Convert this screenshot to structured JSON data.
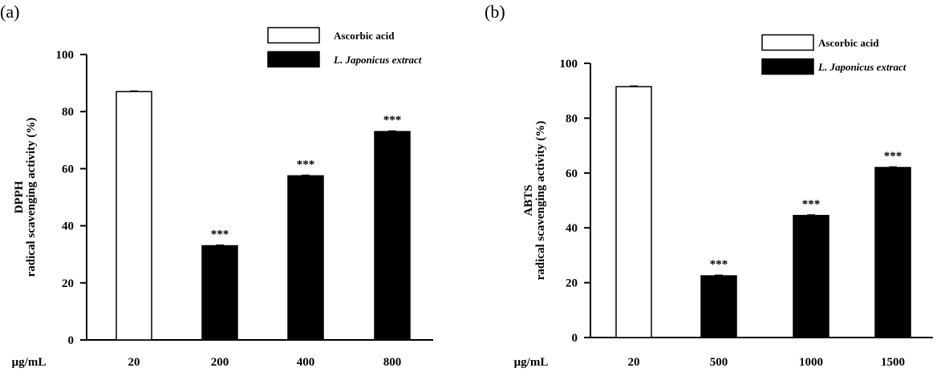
{
  "chart_data": [
    {
      "type": "bar",
      "panel_label": "(a)",
      "ylabel": [
        "DPPH",
        "radical scavenging activity (%)"
      ],
      "x_unit_label": "μg/mL",
      "categories": [
        "20",
        "200",
        "400",
        "800"
      ],
      "series": [
        {
          "name": "Ascorbic acid",
          "fill": "#ffffff",
          "values": [
            87,
            null,
            null,
            null
          ]
        },
        {
          "name": "L. Japonicus extract",
          "fill": "#000000",
          "values": [
            null,
            33,
            57.5,
            73
          ]
        }
      ],
      "significance": [
        "",
        "***",
        "***",
        "***"
      ],
      "ylim": [
        0,
        100
      ],
      "yticks": [
        "0",
        "20",
        "40",
        "60",
        "80",
        "100"
      ],
      "legend_position": "top-right",
      "grid": false
    },
    {
      "type": "bar",
      "panel_label": "(b)",
      "ylabel": [
        "ABTS",
        "radical scavenging activity (%)"
      ],
      "x_unit_label": "μg/mL",
      "categories": [
        "20",
        "500",
        "1000",
        "1500"
      ],
      "series": [
        {
          "name": "Ascorbic acid",
          "fill": "#ffffff",
          "values": [
            91.5,
            null,
            null,
            null
          ]
        },
        {
          "name": "L. Japonicus extract",
          "fill": "#000000",
          "values": [
            null,
            22.5,
            44.5,
            62
          ]
        }
      ],
      "significance": [
        "",
        "***",
        "***",
        "***"
      ],
      "ylim": [
        0,
        100
      ],
      "yticks": [
        "0",
        "20",
        "40",
        "60",
        "80",
        "100"
      ],
      "legend_position": "top-right",
      "grid": false
    }
  ]
}
